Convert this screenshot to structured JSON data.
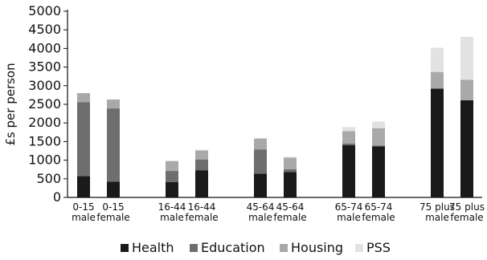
{
  "chart_data": {
    "type": "bar",
    "stacked": true,
    "ylabel": "£s per person",
    "ylim": [
      0,
      5000
    ],
    "yticks": [
      0,
      500,
      1000,
      1500,
      2000,
      2500,
      3000,
      3500,
      4000,
      4500,
      5000
    ],
    "grid": false,
    "legend_position": "bottom",
    "categories": [
      {
        "line1": "0-15",
        "line2": "male"
      },
      {
        "line1": "0-15",
        "line2": "female"
      },
      {
        "line1": "16-44",
        "line2": "male"
      },
      {
        "line1": "16-44",
        "line2": "female"
      },
      {
        "line1": "45-64",
        "line2": "male"
      },
      {
        "line1": "45-64",
        "line2": "female"
      },
      {
        "line1": "65-74",
        "line2": "male"
      },
      {
        "line1": "65-74",
        "line2": "female"
      },
      {
        "line1": "75 plus",
        "line2": "male"
      },
      {
        "line1": "75 plus",
        "line2": "female"
      }
    ],
    "series": [
      {
        "name": "Health",
        "color": "#1a1a1a",
        "values": [
          570,
          420,
          410,
          730,
          640,
          680,
          1400,
          1370,
          2920,
          2610
        ]
      },
      {
        "name": "Education",
        "color": "#6e6e6e",
        "values": [
          1990,
          1970,
          300,
          290,
          650,
          80,
          50,
          20,
          0,
          0
        ]
      },
      {
        "name": "Housing",
        "color": "#a9a9a9",
        "values": [
          240,
          240,
          260,
          240,
          290,
          310,
          330,
          470,
          450,
          550
        ]
      },
      {
        "name": "PSS",
        "color": "#e2e2e2",
        "values": [
          0,
          0,
          20,
          20,
          20,
          20,
          110,
          180,
          650,
          1150
        ]
      }
    ]
  }
}
